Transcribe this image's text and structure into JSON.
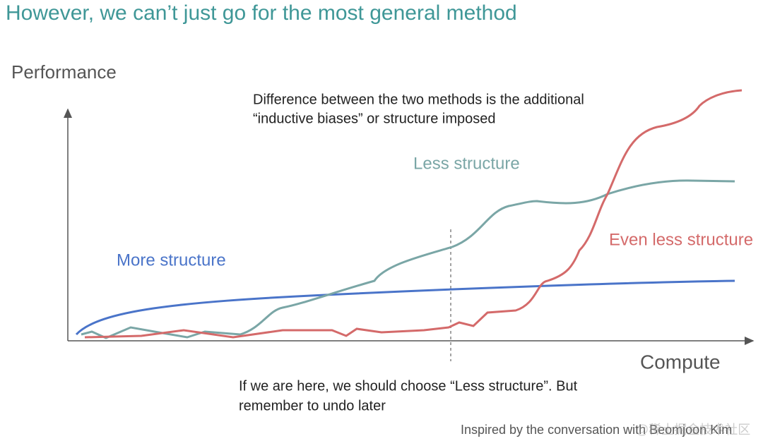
{
  "title": "However, we can’t just go for the most general method",
  "axes": {
    "y_label": "Performance",
    "x_label": "Compute"
  },
  "top_note": {
    "lines": [
      "Difference between the two methods is the additional",
      "“inductive biases” or structure imposed"
    ]
  },
  "curves": [
    {
      "label": "More structure"
    },
    {
      "label": "Less structure"
    },
    {
      "label": "Even less structure"
    }
  ],
  "bottom_note": {
    "lines": [
      "If we are here, we should choose “Less structure”. But",
      "remember to undo later"
    ]
  },
  "footer": "Inspired by the conversation with Beomjoon Kim",
  "watermark": "@稀土掘金技术社区"
}
